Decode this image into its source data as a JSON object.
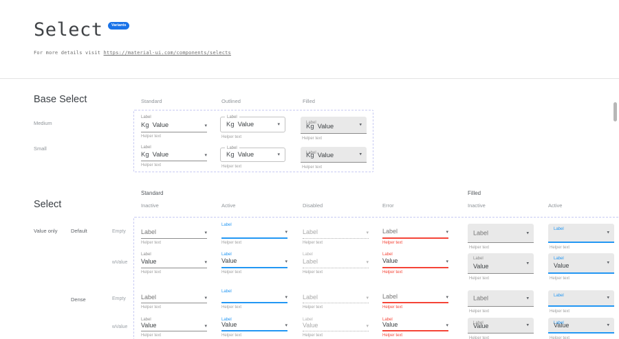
{
  "header": {
    "title": "Select",
    "badge": "Variants",
    "subtitle_prefix": "For more details visit",
    "link": "https://material-ui.com/components/selects"
  },
  "strings": {
    "label": "Label",
    "value": "Value",
    "adornment": "Kg",
    "helper": "Helper text"
  },
  "base_select": {
    "heading": "Base Select",
    "columns": [
      "Standard",
      "Outlined",
      "Filled"
    ],
    "rows": [
      "Medium",
      "Small"
    ]
  },
  "select_matrix": {
    "heading": "Select",
    "groups": [
      "Standard",
      "Filled"
    ],
    "states": [
      "Inactive",
      "Active",
      "Disabled",
      "Error",
      "Inactive",
      "Active"
    ],
    "row_group": "Value only",
    "densities": [
      "Default",
      "Dense"
    ],
    "rows": [
      "Empty",
      "wValue"
    ]
  },
  "colors": {
    "primary_blue": "#2196f3",
    "error_red": "#f44336",
    "badge_blue": "#1a73e8",
    "filled_bg": "#e9e9e9",
    "underline_gray": "#8c8c8c",
    "dashed_frame": "#c6c9f2"
  }
}
